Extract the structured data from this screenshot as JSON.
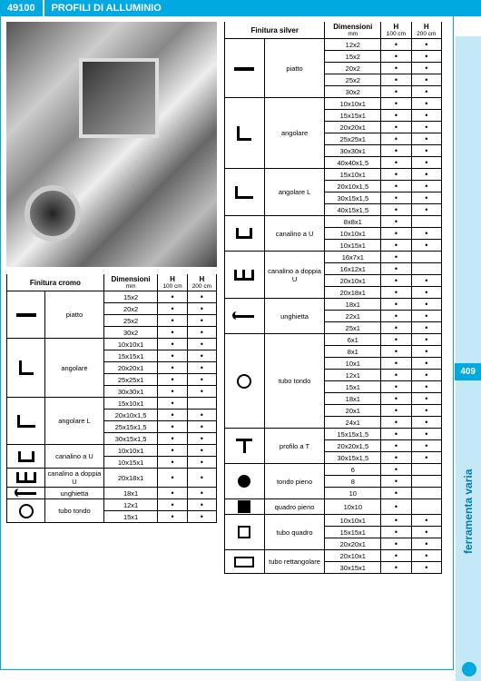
{
  "header": {
    "code": "49100",
    "title": "PROFILI DI ALLUMINIO"
  },
  "sideTab": "ferramenta varia",
  "pageNumber": "409",
  "colors": {
    "accent": "#00a9e0",
    "sideTabBg": "#c4e8f6",
    "sideTabText": "#007db3",
    "border": "#000000",
    "background": "#ffffff"
  },
  "columns": {
    "title_left": "Finitura cromo",
    "title_right": "Finitura silver",
    "dim": "Dimensioni",
    "dim_sub": "mm",
    "h1": "H",
    "h1_sub": "100 cm",
    "h2": "H",
    "h2_sub": "200 cm"
  },
  "left": [
    {
      "icon": "piatto",
      "label": "piatto",
      "rows": [
        {
          "d": "15x2",
          "h1": "•",
          "h2": "•"
        },
        {
          "d": "20x2",
          "h1": "•",
          "h2": "•"
        },
        {
          "d": "25x2",
          "h1": "•",
          "h2": "•"
        },
        {
          "d": "30x2",
          "h1": "•",
          "h2": "•"
        }
      ]
    },
    {
      "icon": "ang",
      "label": "angolare",
      "rows": [
        {
          "d": "10x10x1",
          "h1": "•",
          "h2": "•"
        },
        {
          "d": "15x15x1",
          "h1": "•",
          "h2": "•"
        },
        {
          "d": "20x20x1",
          "h1": "•",
          "h2": "•"
        },
        {
          "d": "25x25x1",
          "h1": "•",
          "h2": "•"
        },
        {
          "d": "30x30x1",
          "h1": "•",
          "h2": "•"
        }
      ]
    },
    {
      "icon": "angL",
      "label": "angolare L",
      "rows": [
        {
          "d": "15x10x1",
          "h1": "•",
          "h2": ""
        },
        {
          "d": "20x10x1,5",
          "h1": "•",
          "h2": "•"
        },
        {
          "d": "25x15x1,5",
          "h1": "•",
          "h2": "•"
        },
        {
          "d": "30x15x1,5",
          "h1": "•",
          "h2": "•"
        }
      ]
    },
    {
      "icon": "u",
      "label": "canalino a U",
      "rows": [
        {
          "d": "10x10x1",
          "h1": "•",
          "h2": "•"
        },
        {
          "d": "10x15x1",
          "h1": "•",
          "h2": "•"
        }
      ]
    },
    {
      "icon": "du",
      "label": "canalino a doppia U",
      "rows": [
        {
          "d": "20x18x1",
          "h1": "•",
          "h2": "•"
        }
      ]
    },
    {
      "icon": "ung",
      "label": "unghietta",
      "rows": [
        {
          "d": "18x1",
          "h1": "•",
          "h2": "•"
        }
      ]
    },
    {
      "icon": "tondo",
      "label": "tubo tondo",
      "rows": [
        {
          "d": "12x1",
          "h1": "•",
          "h2": "•"
        },
        {
          "d": "15x1",
          "h1": "•",
          "h2": "•"
        }
      ]
    }
  ],
  "right": [
    {
      "icon": "piatto",
      "label": "piatto",
      "rows": [
        {
          "d": "12x2",
          "h1": "•",
          "h2": "•"
        },
        {
          "d": "15x2",
          "h1": "•",
          "h2": "•"
        },
        {
          "d": "20x2",
          "h1": "•",
          "h2": "•"
        },
        {
          "d": "25x2",
          "h1": "•",
          "h2": "•"
        },
        {
          "d": "30x2",
          "h1": "•",
          "h2": "•"
        }
      ]
    },
    {
      "icon": "ang",
      "label": "angolare",
      "rows": [
        {
          "d": "10x10x1",
          "h1": "•",
          "h2": "•"
        },
        {
          "d": "15x15x1",
          "h1": "•",
          "h2": "•"
        },
        {
          "d": "20x20x1",
          "h1": "•",
          "h2": "•"
        },
        {
          "d": "25x25x1",
          "h1": "•",
          "h2": "•"
        },
        {
          "d": "30x30x1",
          "h1": "•",
          "h2": "•"
        },
        {
          "d": "40x40x1,5",
          "h1": "•",
          "h2": "•"
        }
      ]
    },
    {
      "icon": "angL",
      "label": "angolare L",
      "rows": [
        {
          "d": "15x10x1",
          "h1": "•",
          "h2": "•"
        },
        {
          "d": "20x10x1,5",
          "h1": "•",
          "h2": "•"
        },
        {
          "d": "30x15x1,5",
          "h1": "•",
          "h2": "•"
        },
        {
          "d": "40x15x1,5",
          "h1": "•",
          "h2": "•"
        }
      ]
    },
    {
      "icon": "u",
      "label": "canalino a U",
      "rows": [
        {
          "d": "8x8x1",
          "h1": "•",
          "h2": ""
        },
        {
          "d": "10x10x1",
          "h1": "•",
          "h2": "•"
        },
        {
          "d": "10x15x1",
          "h1": "•",
          "h2": "•"
        }
      ]
    },
    {
      "icon": "du",
      "label": "canalino a doppia U",
      "rows": [
        {
          "d": "16x7x1",
          "h1": "•",
          "h2": ""
        },
        {
          "d": "16x12x1",
          "h1": "•",
          "h2": ""
        },
        {
          "d": "20x10x1",
          "h1": "•",
          "h2": "•"
        },
        {
          "d": "20x18x1",
          "h1": "•",
          "h2": "•"
        }
      ]
    },
    {
      "icon": "ung",
      "label": "unghietta",
      "rows": [
        {
          "d": "18x1",
          "h1": "•",
          "h2": "•"
        },
        {
          "d": "22x1",
          "h1": "•",
          "h2": "•"
        },
        {
          "d": "25x1",
          "h1": "•",
          "h2": "•"
        }
      ]
    },
    {
      "icon": "tondo",
      "label": "tubo tondo",
      "rows": [
        {
          "d": "6x1",
          "h1": "•",
          "h2": "•"
        },
        {
          "d": "8x1",
          "h1": "•",
          "h2": "•"
        },
        {
          "d": "10x1",
          "h1": "•",
          "h2": "•"
        },
        {
          "d": "12x1",
          "h1": "•",
          "h2": "•"
        },
        {
          "d": "15x1",
          "h1": "•",
          "h2": "•"
        },
        {
          "d": "18x1",
          "h1": "•",
          "h2": "•"
        },
        {
          "d": "20x1",
          "h1": "•",
          "h2": "•"
        },
        {
          "d": "24x1",
          "h1": "•",
          "h2": "•"
        }
      ]
    },
    {
      "icon": "t",
      "label": "profilo a T",
      "rows": [
        {
          "d": "15x15x1,5",
          "h1": "•",
          "h2": "•"
        },
        {
          "d": "20x20x1,5",
          "h1": "•",
          "h2": "•"
        },
        {
          "d": "30x15x1,5",
          "h1": "•",
          "h2": "•"
        }
      ]
    },
    {
      "icon": "pieno",
      "label": "tondo pieno",
      "rows": [
        {
          "d": "6",
          "h1": "•",
          "h2": ""
        },
        {
          "d": "8",
          "h1": "•",
          "h2": ""
        },
        {
          "d": "10",
          "h1": "•",
          "h2": ""
        }
      ]
    },
    {
      "icon": "qpieno",
      "label": "quadro pieno",
      "rows": [
        {
          "d": "10x10",
          "h1": "•",
          "h2": ""
        }
      ]
    },
    {
      "icon": "quadro",
      "label": "tubo quadro",
      "rows": [
        {
          "d": "10x10x1",
          "h1": "•",
          "h2": "•"
        },
        {
          "d": "15x15x1",
          "h1": "•",
          "h2": "•"
        },
        {
          "d": "20x20x1",
          "h1": "•",
          "h2": "•"
        }
      ]
    },
    {
      "icon": "rett",
      "label": "tubo rettangolare",
      "rows": [
        {
          "d": "20x10x1",
          "h1": "•",
          "h2": "•"
        },
        {
          "d": "30x15x1",
          "h1": "•",
          "h2": "•"
        }
      ]
    }
  ]
}
